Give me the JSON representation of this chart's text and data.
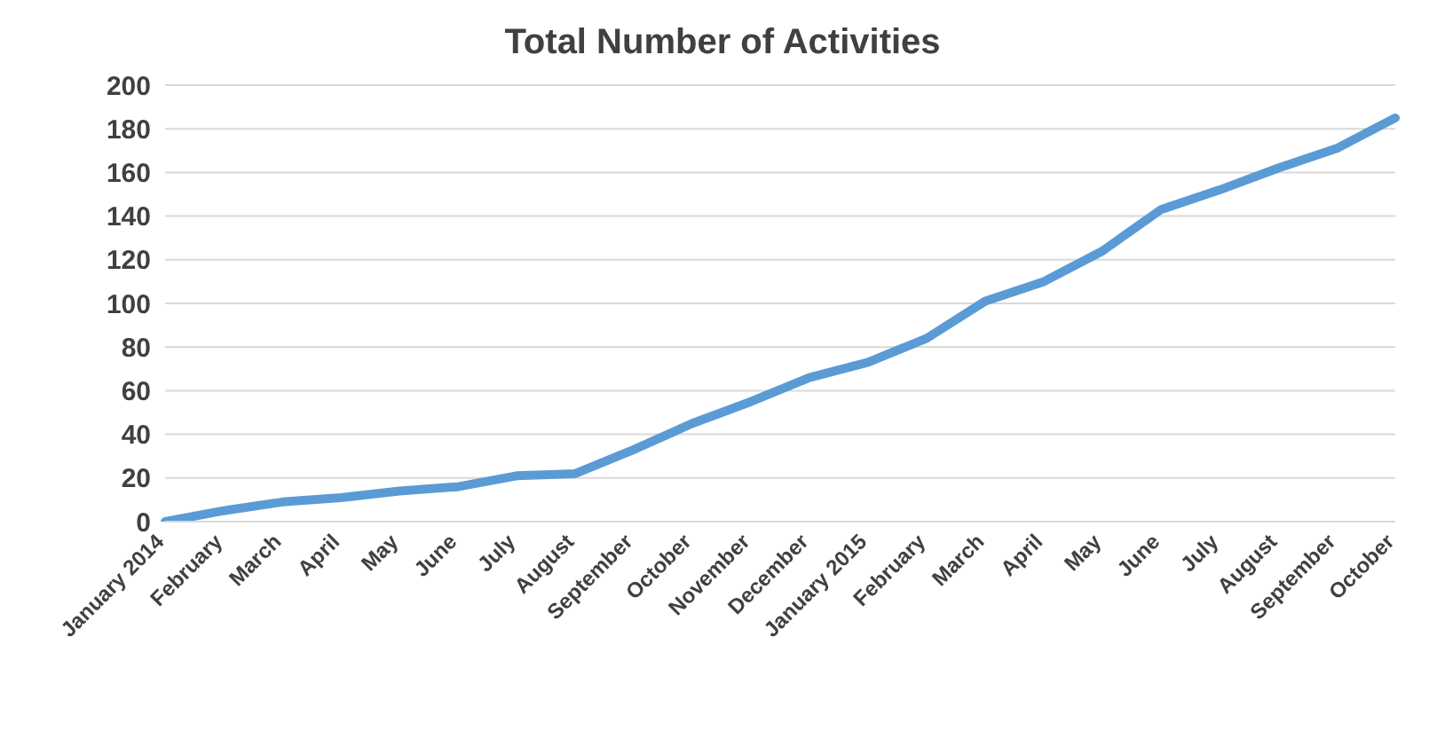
{
  "chart_data": {
    "type": "line",
    "title": "Total Number of Activities",
    "categories": [
      "January 2014",
      "February",
      "March",
      "April",
      "May",
      "June",
      "July",
      "August",
      "September",
      "October",
      "November",
      "December",
      "January 2015",
      "February",
      "March",
      "April",
      "May",
      "June",
      "July",
      "August",
      "September",
      "October"
    ],
    "series": [
      {
        "color": "#5b9bd5",
        "values": [
          0,
          5,
          9,
          11,
          14,
          16,
          21,
          22,
          33,
          45,
          55,
          66,
          73,
          84,
          101,
          110,
          124,
          143,
          152,
          162,
          171,
          185
        ]
      }
    ],
    "ylim": [
      0,
      200
    ],
    "yticks": [
      0,
      20,
      40,
      60,
      80,
      100,
      120,
      140,
      160,
      180,
      200
    ],
    "grid": "y",
    "marker": "none",
    "line_style": "solid"
  }
}
